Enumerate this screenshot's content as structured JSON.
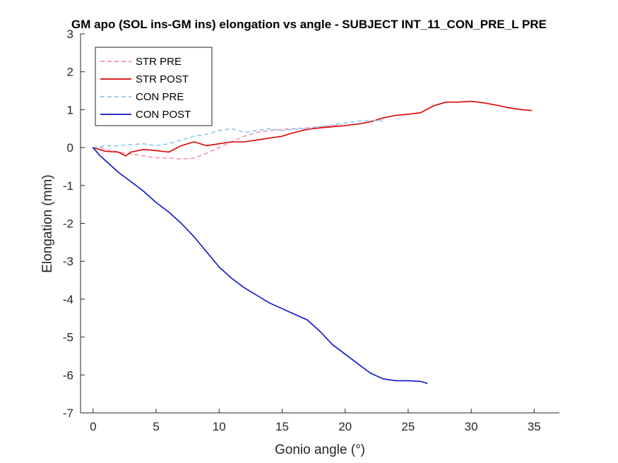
{
  "chart_data": {
    "type": "line",
    "title": "GM apo (SOL ins-GM ins) elongation vs angle - SUBJECT INT_11_CON_PRE_L PRE",
    "xlabel": "Gonio angle (°)",
    "ylabel": "Elongation (mm)",
    "xlim": [
      -1,
      37
    ],
    "ylim": [
      -7,
      3
    ],
    "xticks": [
      0,
      5,
      10,
      15,
      20,
      25,
      30,
      35
    ],
    "yticks": [
      -7,
      -6,
      -5,
      -4,
      -3,
      -2,
      -1,
      0,
      1,
      2,
      3
    ],
    "grid": false,
    "legend_position": "top-left",
    "series": [
      {
        "name": "STR PRE",
        "color": "#f48fb1",
        "dash": true,
        "x": [
          0,
          0.5,
          1,
          2,
          3,
          4,
          5,
          6,
          7,
          8,
          9,
          10,
          11,
          12,
          13,
          14,
          15,
          16,
          17,
          18,
          19,
          19.7
        ],
        "y": [
          0,
          0.02,
          -0.05,
          -0.12,
          -0.17,
          -0.22,
          -0.27,
          -0.28,
          -0.3,
          -0.28,
          -0.15,
          0.0,
          0.15,
          0.3,
          0.4,
          0.45,
          0.48,
          0.5,
          0.52,
          0.55,
          0.58,
          0.6
        ]
      },
      {
        "name": "STR POST",
        "color": "#dd0000",
        "dash": false,
        "x": [
          0,
          0.5,
          1,
          2,
          2.6,
          3,
          4,
          5,
          6,
          7,
          8,
          9,
          10,
          11,
          12,
          13,
          14,
          15,
          16,
          17,
          18,
          19,
          20,
          21,
          22,
          23,
          24,
          25,
          26,
          27,
          28,
          29,
          30,
          31,
          32,
          33,
          34,
          34.8
        ],
        "y": [
          0,
          -0.05,
          -0.1,
          -0.12,
          -0.22,
          -0.12,
          -0.05,
          -0.08,
          -0.12,
          0.05,
          0.15,
          0.05,
          0.1,
          0.15,
          0.15,
          0.2,
          0.25,
          0.3,
          0.4,
          0.48,
          0.52,
          0.55,
          0.58,
          0.62,
          0.68,
          0.78,
          0.85,
          0.88,
          0.92,
          1.1,
          1.2,
          1.2,
          1.22,
          1.18,
          1.12,
          1.05,
          1.0,
          0.98
        ]
      },
      {
        "name": "CON PRE",
        "color": "#8cc8f5",
        "dash": true,
        "x": [
          0,
          0.5,
          1,
          2,
          3,
          4,
          5,
          6,
          7,
          8,
          9,
          10,
          11,
          12,
          13,
          14,
          15,
          16,
          17,
          18,
          19,
          20,
          21,
          22,
          23
        ],
        "y": [
          0,
          0.02,
          0.05,
          0.05,
          0.08,
          0.1,
          0.05,
          0.1,
          0.2,
          0.3,
          0.35,
          0.45,
          0.5,
          0.4,
          0.45,
          0.5,
          0.45,
          0.48,
          0.5,
          0.55,
          0.6,
          0.65,
          0.7,
          0.72,
          0.7
        ]
      },
      {
        "name": "CON POST",
        "color": "#0a12c8",
        "dash": false,
        "x": [
          0,
          0.5,
          1,
          1.5,
          2,
          3,
          4,
          5,
          6,
          7,
          8,
          9,
          10,
          11,
          12,
          13,
          14,
          15,
          16,
          17,
          18,
          19,
          20,
          21,
          22,
          23,
          24,
          25,
          26,
          26.5
        ],
        "y": [
          0,
          -0.2,
          -0.35,
          -0.5,
          -0.65,
          -0.9,
          -1.15,
          -1.45,
          -1.7,
          -2.0,
          -2.35,
          -2.75,
          -3.15,
          -3.45,
          -3.7,
          -3.9,
          -4.1,
          -4.25,
          -4.4,
          -4.55,
          -4.85,
          -5.2,
          -5.45,
          -5.7,
          -5.95,
          -6.1,
          -6.15,
          -6.15,
          -6.17,
          -6.22
        ]
      }
    ]
  }
}
